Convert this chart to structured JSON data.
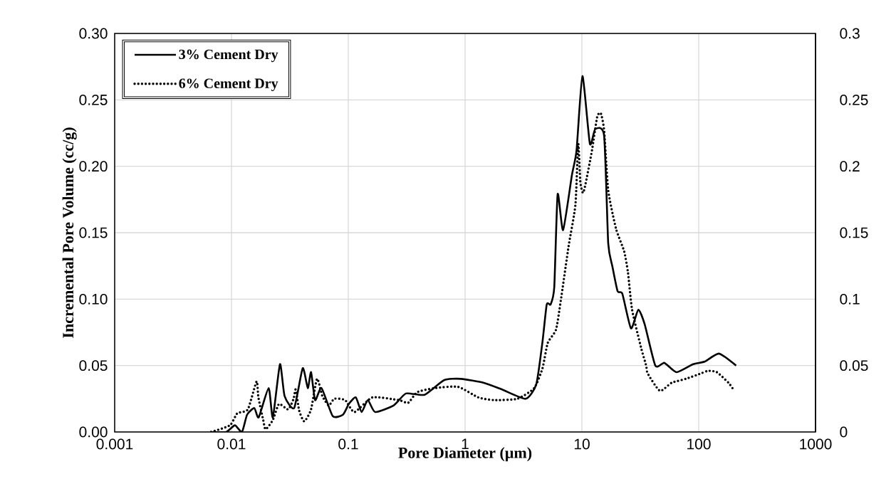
{
  "chart_data": {
    "type": "line",
    "xlabel": "Pore Diameter (µm)",
    "ylabel": "Incremental Pore Volume (cc/g)",
    "log": "x",
    "xlim": [
      0.001,
      1000
    ],
    "xticks": [
      0.001,
      0.01,
      0.1,
      1,
      10,
      100,
      1000
    ],
    "ylim": [
      0,
      0.3
    ],
    "yticks": [
      {
        "value": 0,
        "label": "0.00"
      },
      {
        "value": 0.05,
        "label": "0.05"
      },
      {
        "value": 0.1,
        "label": "0.10"
      },
      {
        "value": 0.15,
        "label": "0.15"
      },
      {
        "value": 0.2,
        "label": "0.20"
      },
      {
        "value": 0.25,
        "label": "0.25"
      },
      {
        "value": 0.3,
        "label": "0.30"
      }
    ],
    "y2lim": [
      0,
      0.3
    ],
    "y2ticks": [
      0,
      0.05,
      0.1,
      0.15,
      0.2,
      0.25,
      0.3
    ],
    "grid": true,
    "legend": "top left",
    "marker": "none",
    "series": [
      {
        "name": "3% Cement Dry",
        "color": "#000000",
        "line_style": "solid",
        "x": [
          0.00656,
          0.009,
          0.0107,
          0.0123,
          0.0136,
          0.0157,
          0.0171,
          0.0208,
          0.0226,
          0.026,
          0.0285,
          0.0344,
          0.0407,
          0.045,
          0.048,
          0.052,
          0.059,
          0.0735,
          0.09,
          0.101,
          0.116,
          0.13,
          0.147,
          0.17,
          0.245,
          0.312,
          0.45,
          0.66,
          0.92,
          1.45,
          2.07,
          3.3,
          4.07,
          4.6,
          5.0,
          5.4,
          5.8,
          6.2,
          6.9,
          8.2,
          9.0,
          10.1,
          11.7,
          13.0,
          15.5,
          16.8,
          18.2,
          20.2,
          22.2,
          26.3,
          30.4,
          34.5,
          42.5,
          50.9,
          64.7,
          89.5,
          113,
          149,
          209
        ],
        "values": [
          0,
          0,
          0.005,
          0,
          0.013,
          0.018,
          0.011,
          0.033,
          0.011,
          0.051,
          0.027,
          0.018,
          0.048,
          0.033,
          0.045,
          0.024,
          0.033,
          0.012,
          0.013,
          0.021,
          0.026,
          0.015,
          0.024,
          0.015,
          0.02,
          0.029,
          0.028,
          0.039,
          0.04,
          0.037,
          0.032,
          0.025,
          0.036,
          0.068,
          0.096,
          0.096,
          0.109,
          0.179,
          0.152,
          0.193,
          0.212,
          0.268,
          0.217,
          0.228,
          0.223,
          0.142,
          0.125,
          0.106,
          0.104,
          0.078,
          0.092,
          0.081,
          0.05,
          0.052,
          0.045,
          0.051,
          0.053,
          0.059,
          0.05
        ]
      },
      {
        "name": "6% Cement Dry",
        "color": "#000000",
        "line_style": "dotted",
        "x": [
          0.0067,
          0.0097,
          0.0112,
          0.0138,
          0.0164,
          0.017,
          0.0187,
          0.0196,
          0.0226,
          0.0255,
          0.0306,
          0.034,
          0.0355,
          0.038,
          0.042,
          0.048,
          0.054,
          0.06,
          0.068,
          0.076,
          0.094,
          0.113,
          0.161,
          0.27,
          0.326,
          0.39,
          0.55,
          0.87,
          1.3,
          1.77,
          2.8,
          3.9,
          4.6,
          5.1,
          6.0,
          6.6,
          7.7,
          8.8,
          9.3,
          9.7,
          10.2,
          10.7,
          12.2,
          13.5,
          14.5,
          15.5,
          16.8,
          19.6,
          23.0,
          24.8,
          26.9,
          32.2,
          35.5,
          36.6,
          46.5,
          58.6,
          77.6,
          104,
          120,
          143,
          180,
          198
        ],
        "values": [
          0,
          0.005,
          0.014,
          0.017,
          0.038,
          0.026,
          0.009,
          0.002,
          0.009,
          0.021,
          0.017,
          0.025,
          0.032,
          0.016,
          0.008,
          0.017,
          0.04,
          0.027,
          0.02,
          0.025,
          0.024,
          0.015,
          0.026,
          0.024,
          0.022,
          0.03,
          0.033,
          0.034,
          0.026,
          0.024,
          0.025,
          0.033,
          0.048,
          0.067,
          0.077,
          0.099,
          0.14,
          0.171,
          0.217,
          0.188,
          0.18,
          0.186,
          0.212,
          0.237,
          0.24,
          0.227,
          0.182,
          0.153,
          0.136,
          0.12,
          0.092,
          0.063,
          0.05,
          0.044,
          0.031,
          0.037,
          0.04,
          0.044,
          0.046,
          0.045,
          0.037,
          0.032
        ]
      }
    ]
  }
}
